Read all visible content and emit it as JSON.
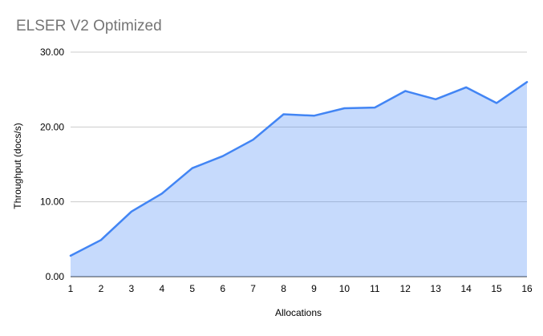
{
  "chart_data": {
    "type": "area",
    "title": "ELSER V2 Optimized",
    "xlabel": "Allocations",
    "ylabel": "Throughput (docs/s)",
    "x": [
      1,
      2,
      3,
      4,
      5,
      6,
      7,
      8,
      9,
      10,
      11,
      12,
      13,
      14,
      15,
      16
    ],
    "xtick_labels": [
      "1",
      "2",
      "3",
      "4",
      "5",
      "6",
      "7",
      "8",
      "9",
      "10",
      "11",
      "12",
      "13",
      "14",
      "15",
      "16"
    ],
    "values": [
      2.8,
      4.9,
      8.7,
      11.1,
      14.5,
      16.1,
      18.3,
      21.7,
      21.5,
      22.5,
      22.6,
      24.8,
      23.7,
      25.3,
      23.2,
      26.0
    ],
    "ylim": [
      0,
      30
    ],
    "yticks": [
      0,
      10,
      20,
      30
    ],
    "ytick_labels": [
      "0.00",
      "10.00",
      "20.00",
      "30.00"
    ],
    "grid": "horizontal-only",
    "legend": "none",
    "colors": {
      "line": "#4285f4",
      "fill": "#4285f4",
      "fill_opacity": 0.3,
      "gridline": "#cccccc",
      "axis_line": "#333333",
      "title_text": "#757575",
      "tick_text": "#000000",
      "axis_title_text": "#000000"
    }
  }
}
